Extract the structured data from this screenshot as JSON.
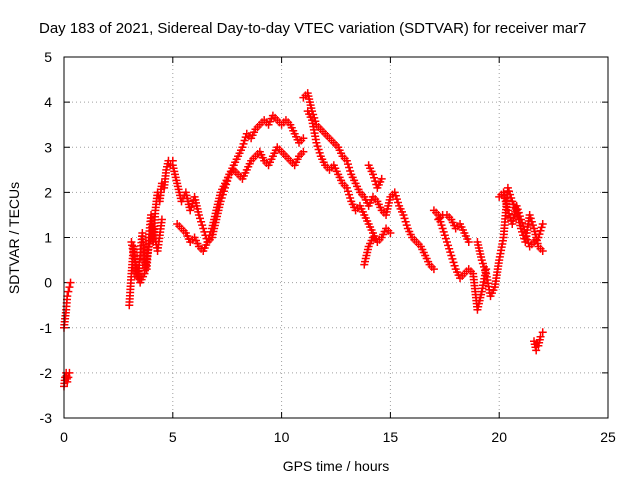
{
  "chart_data": {
    "type": "scatter",
    "title": "Day 183 of 2021, Sidereal Day-to-day VTEC variation (SDTVAR) for receiver mar7",
    "xlabel": "GPS time / hours",
    "ylabel": "SDTVAR / TECUs",
    "xlim": [
      0,
      25
    ],
    "ylim": [
      -3,
      5
    ],
    "xticks": [
      "0",
      "5",
      "10",
      "15",
      "20",
      "25"
    ],
    "yticks": [
      "-3",
      "-2",
      "-1",
      "0",
      "1",
      "2",
      "3",
      "4",
      "5"
    ],
    "grid": true,
    "marker": "+",
    "series": [
      {
        "name": "SDTVAR",
        "color": "#ff0000",
        "segments": [
          {
            "x": [
              0.0,
              0.05,
              0.1,
              0.15,
              0.2,
              0.25
            ],
            "y": [
              -2.3,
              -2.1,
              -2.0,
              -2.2,
              -2.1,
              -2.0
            ]
          },
          {
            "x": [
              0.0,
              0.05,
              0.1,
              0.15,
              0.2,
              0.25,
              0.3
            ],
            "y": [
              -1.0,
              -0.8,
              -0.6,
              -0.3,
              -0.2,
              -0.1,
              0.0
            ]
          },
          {
            "x": [
              3.0,
              3.1,
              3.2,
              3.3,
              3.4,
              3.5,
              3.6,
              3.7,
              3.8,
              3.9,
              4.0,
              4.1,
              4.2,
              4.3,
              4.4,
              4.5,
              4.6,
              4.7,
              4.8,
              4.9,
              5.0
            ],
            "y": [
              -0.5,
              0.2,
              0.8,
              0.3,
              0.1,
              0.6,
              1.1,
              0.5,
              0.3,
              1.0,
              1.5,
              0.9,
              1.6,
              2.0,
              1.8,
              2.2,
              2.1,
              2.5,
              2.7,
              2.6,
              2.7
            ]
          },
          {
            "x": [
              3.1,
              3.3,
              3.5,
              3.7,
              3.9,
              4.1,
              4.3,
              4.5
            ],
            "y": [
              0.9,
              0.4,
              0.0,
              0.2,
              0.8,
              1.2,
              0.7,
              1.4
            ]
          },
          {
            "x": [
              5.0,
              5.2,
              5.4,
              5.6,
              5.8,
              6.0,
              6.2,
              6.4,
              6.6,
              6.8,
              7.0,
              7.2,
              7.4,
              7.6,
              7.8,
              8.0,
              8.2,
              8.4,
              8.6,
              8.8,
              9.0,
              9.2,
              9.4,
              9.6,
              9.8,
              10.0,
              10.2,
              10.4,
              10.6,
              10.8,
              11.0
            ],
            "y": [
              2.6,
              2.2,
              1.8,
              2.0,
              1.6,
              1.9,
              1.5,
              1.2,
              0.9,
              1.0,
              1.4,
              1.8,
              2.1,
              2.4,
              2.6,
              2.8,
              3.0,
              3.3,
              3.2,
              3.4,
              3.5,
              3.6,
              3.5,
              3.7,
              3.6,
              3.5,
              3.6,
              3.5,
              3.3,
              3.1,
              3.2
            ]
          },
          {
            "x": [
              5.2,
              5.4,
              5.6,
              5.8,
              6.0,
              6.2,
              6.4,
              6.6,
              6.8,
              7.0,
              7.2,
              7.4,
              7.6,
              7.8,
              8.0,
              8.2,
              8.4,
              8.6,
              8.8,
              9.0,
              9.2,
              9.4,
              9.6,
              9.8,
              10.0,
              10.2,
              10.4,
              10.6,
              10.8,
              11.0
            ],
            "y": [
              1.3,
              1.2,
              1.1,
              0.9,
              1.0,
              0.8,
              0.7,
              0.9,
              1.2,
              1.6,
              2.0,
              2.2,
              2.4,
              2.5,
              2.4,
              2.3,
              2.5,
              2.7,
              2.8,
              2.9,
              2.7,
              2.6,
              2.8,
              3.0,
              2.9,
              2.8,
              2.7,
              2.6,
              2.8,
              2.9
            ]
          },
          {
            "x": [
              11.0,
              11.2,
              11.4,
              11.6,
              11.8,
              12.0,
              12.2,
              12.4,
              12.6,
              12.8,
              13.0,
              13.2,
              13.4,
              13.6,
              13.8,
              14.0,
              14.2,
              14.4,
              14.6,
              14.8,
              15.0,
              15.2,
              15.4,
              15.6,
              15.8,
              16.0,
              16.2,
              16.4,
              16.6,
              16.8,
              17.0
            ],
            "y": [
              4.1,
              4.2,
              3.8,
              3.5,
              3.4,
              3.3,
              3.2,
              3.1,
              3.0,
              2.8,
              2.7,
              2.4,
              2.2,
              2.0,
              1.9,
              1.7,
              1.9,
              1.8,
              1.6,
              1.5,
              1.9,
              2.0,
              1.7,
              1.5,
              1.2,
              1.0,
              0.9,
              0.8,
              0.6,
              0.4,
              0.3
            ]
          },
          {
            "x": [
              11.2,
              11.4,
              11.6,
              11.8,
              12.0,
              12.2,
              12.4,
              12.6,
              12.8,
              13.0,
              13.2,
              13.4,
              13.6,
              13.8,
              14.0,
              14.2,
              14.4,
              14.6,
              14.8,
              15.0
            ],
            "y": [
              3.8,
              3.6,
              3.1,
              2.8,
              2.6,
              2.5,
              2.6,
              2.4,
              2.2,
              2.1,
              1.8,
              1.6,
              1.7,
              1.5,
              1.3,
              1.1,
              0.9,
              1.0,
              1.2,
              1.1
            ]
          },
          {
            "x": [
              14.0,
              14.2,
              14.4,
              14.6
            ],
            "y": [
              2.6,
              2.4,
              2.1,
              2.3
            ]
          },
          {
            "x": [
              13.8,
              14.0,
              14.2
            ],
            "y": [
              0.4,
              0.8,
              1.0
            ]
          },
          {
            "x": [
              17.0,
              17.2,
              17.4,
              17.6,
              17.8,
              18.0,
              18.2,
              18.4,
              18.6,
              18.8,
              19.0,
              19.2,
              19.4
            ],
            "y": [
              1.6,
              1.5,
              1.2,
              0.9,
              0.6,
              0.3,
              0.1,
              0.2,
              0.3,
              0.2,
              -0.6,
              -0.2,
              0.3
            ]
          },
          {
            "x": [
              17.2,
              17.4,
              17.6,
              17.8,
              18.0,
              18.2,
              18.4,
              18.6
            ],
            "y": [
              1.4,
              1.5,
              1.5,
              1.4,
              1.2,
              1.3,
              1.1,
              0.9
            ]
          },
          {
            "x": [
              19.0,
              19.2,
              19.4,
              19.6,
              19.8,
              20.0,
              20.2,
              20.4,
              20.6,
              20.8,
              21.0,
              21.2,
              21.4,
              21.6,
              21.8,
              22.0
            ],
            "y": [
              0.9,
              0.5,
              0.2,
              -0.3,
              -0.1,
              0.5,
              1.0,
              2.1,
              1.8,
              1.6,
              1.2,
              0.9,
              1.5,
              1.2,
              0.8,
              0.7
            ]
          },
          {
            "x": [
              20.0,
              20.2,
              20.4,
              20.6,
              20.8,
              21.0,
              21.2,
              21.4,
              21.6,
              21.8,
              22.0
            ],
            "y": [
              1.9,
              2.0,
              1.6,
              1.3,
              1.7,
              1.4,
              1.1,
              0.8,
              0.9,
              1.0,
              1.3
            ]
          },
          {
            "x": [
              21.6,
              21.7,
              21.8,
              21.9,
              22.0
            ],
            "y": [
              -1.3,
              -1.5,
              -1.4,
              -1.2,
              -1.1
            ]
          }
        ]
      }
    ]
  }
}
